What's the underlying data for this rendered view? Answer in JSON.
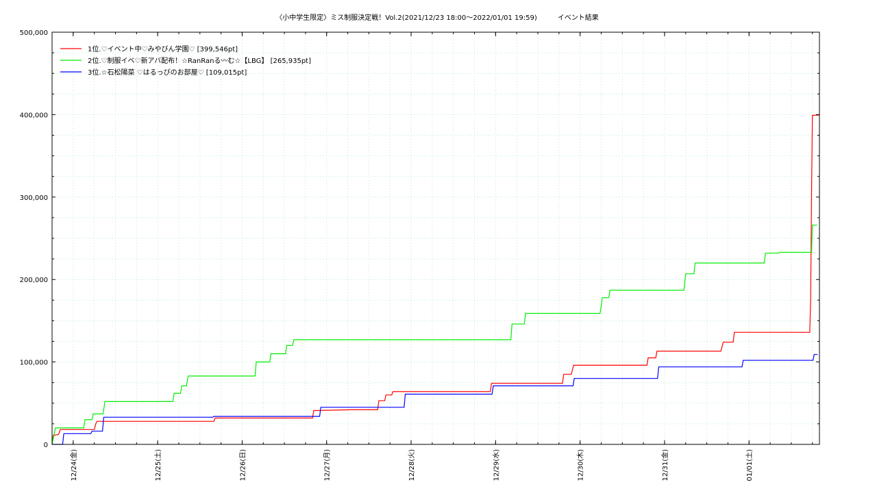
{
  "chart_data": {
    "type": "line",
    "title": "〈小中学生限定〉ミス制服決定戦！Vol.2(2021/12/23 18:00～2022/01/01 19:59)　　　イベント結果",
    "xlabel": "",
    "ylabel": "",
    "x_range": [
      "2021-12-23 18:00",
      "2022-01-01 20:00"
    ],
    "ylim": [
      0,
      500000
    ],
    "y_ticks": [
      {
        "value": 0,
        "label": "0"
      },
      {
        "value": 100000,
        "label": "100,000"
      },
      {
        "value": 200000,
        "label": "200,000"
      },
      {
        "value": 300000,
        "label": "300,000"
      },
      {
        "value": 400000,
        "label": "400,000"
      },
      {
        "value": 500000,
        "label": "500,000"
      }
    ],
    "x_ticks": [
      {
        "value": "2021-12-24 00:00",
        "label": "12/24(金)"
      },
      {
        "value": "2021-12-25 00:00",
        "label": "12/25(土)"
      },
      {
        "value": "2021-12-26 00:00",
        "label": "12/26(日)"
      },
      {
        "value": "2021-12-27 00:00",
        "label": "12/27(月)"
      },
      {
        "value": "2021-12-28 00:00",
        "label": "12/28(火)"
      },
      {
        "value": "2021-12-29 00:00",
        "label": "12/29(水)"
      },
      {
        "value": "2021-12-30 00:00",
        "label": "12/30(木)"
      },
      {
        "value": "2021-12-31 00:00",
        "label": "12/31(金)"
      },
      {
        "value": "2022-01-01 00:00",
        "label": "01/01(土)"
      }
    ],
    "grid": true,
    "legend_position": "top-left",
    "series": [
      {
        "name": "1位.♡イベント中♡みやびん学園♡ [399,546pt]",
        "color": "#ff0000",
        "points": [
          [
            "2021-12-23 18:00",
            0
          ],
          [
            "2021-12-23 18:20",
            11000
          ],
          [
            "2021-12-23 19:50",
            12000
          ],
          [
            "2021-12-23 20:20",
            18000
          ],
          [
            "2021-12-24 06:00",
            18000
          ],
          [
            "2021-12-24 06:25",
            25000
          ],
          [
            "2021-12-24 06:45",
            28000
          ],
          [
            "2021-12-25 16:00",
            28000
          ],
          [
            "2021-12-25 16:20",
            32000
          ],
          [
            "2021-12-26 20:00",
            32000
          ],
          [
            "2021-12-26 20:20",
            41000
          ],
          [
            "2021-12-27 07:00",
            42000
          ],
          [
            "2021-12-27 14:30",
            42000
          ],
          [
            "2021-12-27 14:50",
            53000
          ],
          [
            "2021-12-27 16:30",
            53000
          ],
          [
            "2021-12-27 16:50",
            60000
          ],
          [
            "2021-12-27 18:30",
            60000
          ],
          [
            "2021-12-27 18:50",
            64000
          ],
          [
            "2021-12-28 22:30",
            64000
          ],
          [
            "2021-12-28 22:50",
            74000
          ],
          [
            "2021-12-29 19:00",
            74000
          ],
          [
            "2021-12-29 19:20",
            85000
          ],
          [
            "2021-12-29 21:30",
            85000
          ],
          [
            "2021-12-29 22:10",
            96000
          ],
          [
            "2021-12-30 19:00",
            96000
          ],
          [
            "2021-12-30 19:20",
            105000
          ],
          [
            "2021-12-30 21:30",
            105000
          ],
          [
            "2021-12-30 21:50",
            113000
          ],
          [
            "2021-12-31 16:00",
            113000
          ],
          [
            "2021-12-31 16:40",
            124000
          ],
          [
            "2021-12-31 19:30",
            124000
          ],
          [
            "2021-12-31 19:50",
            136000
          ],
          [
            "2022-01-01 17:15",
            136000
          ],
          [
            "2022-01-01 17:30",
            178000
          ],
          [
            "2022-01-01 17:45",
            300000
          ],
          [
            "2022-01-01 18:00",
            399000
          ],
          [
            "2022-01-01 20:00",
            399546
          ]
        ]
      },
      {
        "name": "2位.♡制服イベ♡新アバ配布！☆RanRanる〰む☆【LBG】 [265,935pt]",
        "color": "#00ee00",
        "points": [
          [
            "2021-12-23 18:00",
            0
          ],
          [
            "2021-12-23 18:40",
            14000
          ],
          [
            "2021-12-23 19:00",
            20000
          ],
          [
            "2021-12-24 03:00",
            20000
          ],
          [
            "2021-12-24 03:20",
            30000
          ],
          [
            "2021-12-24 05:20",
            30000
          ],
          [
            "2021-12-24 05:40",
            37000
          ],
          [
            "2021-12-24 08:30",
            37000
          ],
          [
            "2021-12-24 09:00",
            52000
          ],
          [
            "2021-12-25 04:20",
            52000
          ],
          [
            "2021-12-25 04:40",
            62000
          ],
          [
            "2021-12-25 06:30",
            62000
          ],
          [
            "2021-12-25 06:50",
            71000
          ],
          [
            "2021-12-25 08:10",
            71000
          ],
          [
            "2021-12-25 08:40",
            83000
          ],
          [
            "2021-12-26 03:40",
            83000
          ],
          [
            "2021-12-26 04:00",
            100000
          ],
          [
            "2021-12-26 07:50",
            100000
          ],
          [
            "2021-12-26 08:10",
            110000
          ],
          [
            "2021-12-26 12:20",
            110000
          ],
          [
            "2021-12-26 12:40",
            120000
          ],
          [
            "2021-12-26 14:20",
            120000
          ],
          [
            "2021-12-26 14:40",
            127000
          ],
          [
            "2021-12-29 04:20",
            127000
          ],
          [
            "2021-12-29 04:40",
            146000
          ],
          [
            "2021-12-29 08:10",
            146000
          ],
          [
            "2021-12-29 08:30",
            159000
          ],
          [
            "2021-12-30 05:40",
            159000
          ],
          [
            "2021-12-30 06:20",
            178000
          ],
          [
            "2021-12-30 08:10",
            178000
          ],
          [
            "2021-12-30 08:30",
            187000
          ],
          [
            "2021-12-31 05:30",
            187000
          ],
          [
            "2021-12-31 06:00",
            207000
          ],
          [
            "2021-12-31 08:20",
            207000
          ],
          [
            "2021-12-31 08:40",
            220000
          ],
          [
            "2022-01-01 04:20",
            220000
          ],
          [
            "2022-01-01 04:40",
            232000
          ],
          [
            "2022-01-01 08:20",
            232000
          ],
          [
            "2022-01-01 08:40",
            233000
          ],
          [
            "2022-01-01 17:45",
            233000
          ],
          [
            "2022-01-01 18:00",
            265935
          ],
          [
            "2022-01-01 19:20",
            265935
          ]
        ]
      },
      {
        "name": "3位.☆石松陽菜 ♡はるっぴのお部屋♡ [109,015pt]",
        "color": "#0000ff",
        "points": [
          [
            "2021-12-23 18:00",
            0
          ],
          [
            "2021-12-23 21:00",
            0
          ],
          [
            "2021-12-23 21:20",
            13000
          ],
          [
            "2021-12-24 05:00",
            13000
          ],
          [
            "2021-12-24 05:20",
            16000
          ],
          [
            "2021-12-24 08:20",
            16000
          ],
          [
            "2021-12-24 08:40",
            33000
          ],
          [
            "2021-12-25 15:40",
            33000
          ],
          [
            "2021-12-25 16:00",
            34000
          ],
          [
            "2021-12-26 22:00",
            34000
          ],
          [
            "2021-12-26 22:20",
            45000
          ],
          [
            "2021-12-27 22:00",
            45000
          ],
          [
            "2021-12-27 22:20",
            61000
          ],
          [
            "2021-12-28 23:00",
            61000
          ],
          [
            "2021-12-28 23:20",
            71000
          ],
          [
            "2021-12-29 22:00",
            71000
          ],
          [
            "2021-12-29 22:20",
            80000
          ],
          [
            "2021-12-30 22:00",
            80000
          ],
          [
            "2021-12-30 22:20",
            94000
          ],
          [
            "2021-12-31 22:00",
            94000
          ],
          [
            "2021-12-31 22:20",
            102000
          ],
          [
            "2022-01-01 18:10",
            102000
          ],
          [
            "2022-01-01 18:30",
            109015
          ],
          [
            "2022-01-01 19:30",
            109015
          ]
        ]
      }
    ]
  }
}
